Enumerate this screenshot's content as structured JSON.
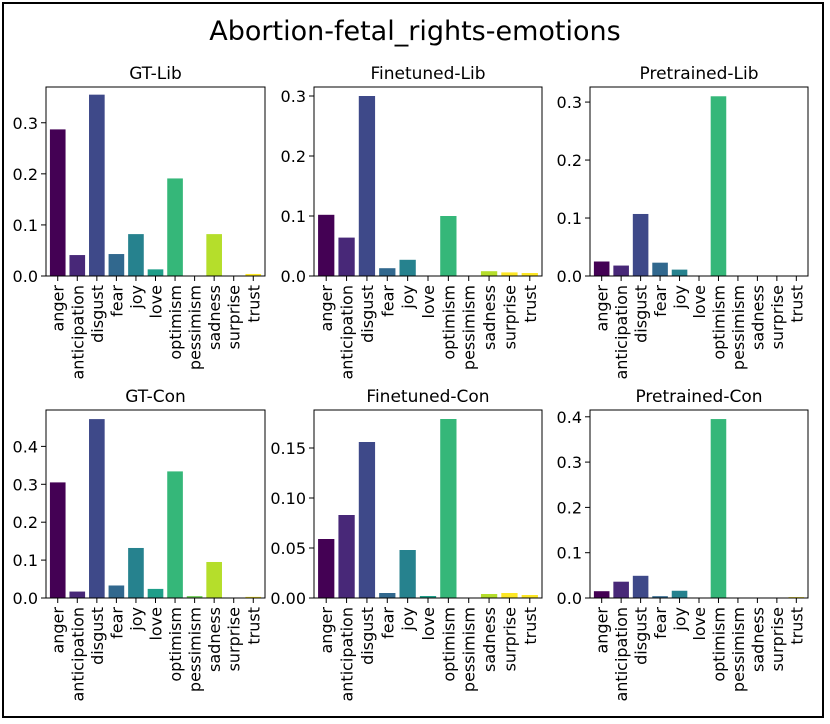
{
  "title": "Abortion-fetal_rights-emotions",
  "palette": [
    "#440154",
    "#482878",
    "#3e4989",
    "#31688e",
    "#26828e",
    "#1f9e89",
    "#35b779",
    "#6ece58",
    "#b5de2b",
    "#fde725"
  ],
  "chart_data": [
    {
      "type": "bar",
      "title": "GT-Lib",
      "categories": [
        "anger",
        "anticipation",
        "disgust",
        "fear",
        "joy",
        "love",
        "optimism",
        "pessimism",
        "sadness",
        "surprise",
        "trust"
      ],
      "values": [
        0.287,
        0.041,
        0.355,
        0.043,
        0.082,
        0.013,
        0.191,
        0.0,
        0.082,
        0.0,
        0.004
      ],
      "ylim": [
        0,
        0.37
      ],
      "yticks": [
        0.0,
        0.1,
        0.2,
        0.3
      ],
      "ytick_labels": [
        "0.0",
        "0.1",
        "0.2",
        "0.3"
      ]
    },
    {
      "type": "bar",
      "title": "Finetuned-Lib",
      "categories": [
        "anger",
        "anticipation",
        "disgust",
        "fear",
        "joy",
        "love",
        "optimism",
        "pessimism",
        "sadness",
        "surprise",
        "trust"
      ],
      "values": [
        0.102,
        0.064,
        0.3,
        0.013,
        0.027,
        0.0,
        0.1,
        0.0,
        0.008,
        0.006,
        0.005
      ],
      "ylim": [
        0,
        0.315
      ],
      "yticks": [
        0.0,
        0.1,
        0.2,
        0.3
      ],
      "ytick_labels": [
        "0.0",
        "0.1",
        "0.2",
        "0.3"
      ]
    },
    {
      "type": "bar",
      "title": "Pretrained-Lib",
      "categories": [
        "anger",
        "anticipation",
        "disgust",
        "fear",
        "joy",
        "love",
        "optimism",
        "pessimism",
        "sadness",
        "surprise",
        "trust"
      ],
      "values": [
        0.025,
        0.018,
        0.107,
        0.023,
        0.011,
        0.0,
        0.31,
        0.0,
        0.0,
        0.0,
        0.0
      ],
      "ylim": [
        0,
        0.326
      ],
      "yticks": [
        0.0,
        0.1,
        0.2,
        0.3
      ],
      "ytick_labels": [
        "0.0",
        "0.1",
        "0.2",
        "0.3"
      ]
    },
    {
      "type": "bar",
      "title": "GT-Con",
      "categories": [
        "anger",
        "anticipation",
        "disgust",
        "fear",
        "joy",
        "love",
        "optimism",
        "pessimism",
        "sadness",
        "surprise",
        "trust"
      ],
      "values": [
        0.305,
        0.017,
        0.472,
        0.033,
        0.132,
        0.024,
        0.334,
        0.005,
        0.095,
        0.0,
        0.003
      ],
      "ylim": [
        0,
        0.496
      ],
      "yticks": [
        0.0,
        0.1,
        0.2,
        0.3,
        0.4
      ],
      "ytick_labels": [
        "0.0",
        "0.1",
        "0.2",
        "0.3",
        "0.4"
      ]
    },
    {
      "type": "bar",
      "title": "Finetuned-Con",
      "categories": [
        "anger",
        "anticipation",
        "disgust",
        "fear",
        "joy",
        "love",
        "optimism",
        "pessimism",
        "sadness",
        "surprise",
        "trust"
      ],
      "values": [
        0.059,
        0.083,
        0.156,
        0.005,
        0.048,
        0.002,
        0.179,
        0.0,
        0.004,
        0.005,
        0.003
      ],
      "ylim": [
        0,
        0.188
      ],
      "yticks": [
        0.0,
        0.05,
        0.1,
        0.15
      ],
      "ytick_labels": [
        "0.00",
        "0.05",
        "0.10",
        "0.15"
      ]
    },
    {
      "type": "bar",
      "title": "Pretrained-Con",
      "categories": [
        "anger",
        "anticipation",
        "disgust",
        "fear",
        "joy",
        "love",
        "optimism",
        "pessimism",
        "sadness",
        "surprise",
        "trust"
      ],
      "values": [
        0.015,
        0.036,
        0.049,
        0.004,
        0.016,
        0.0,
        0.395,
        0.0,
        0.0,
        0.0,
        0.002
      ],
      "ylim": [
        0,
        0.415
      ],
      "yticks": [
        0.0,
        0.1,
        0.2,
        0.3,
        0.4
      ],
      "ytick_labels": [
        "0.0",
        "0.1",
        "0.2",
        "0.3",
        "0.4"
      ]
    }
  ]
}
